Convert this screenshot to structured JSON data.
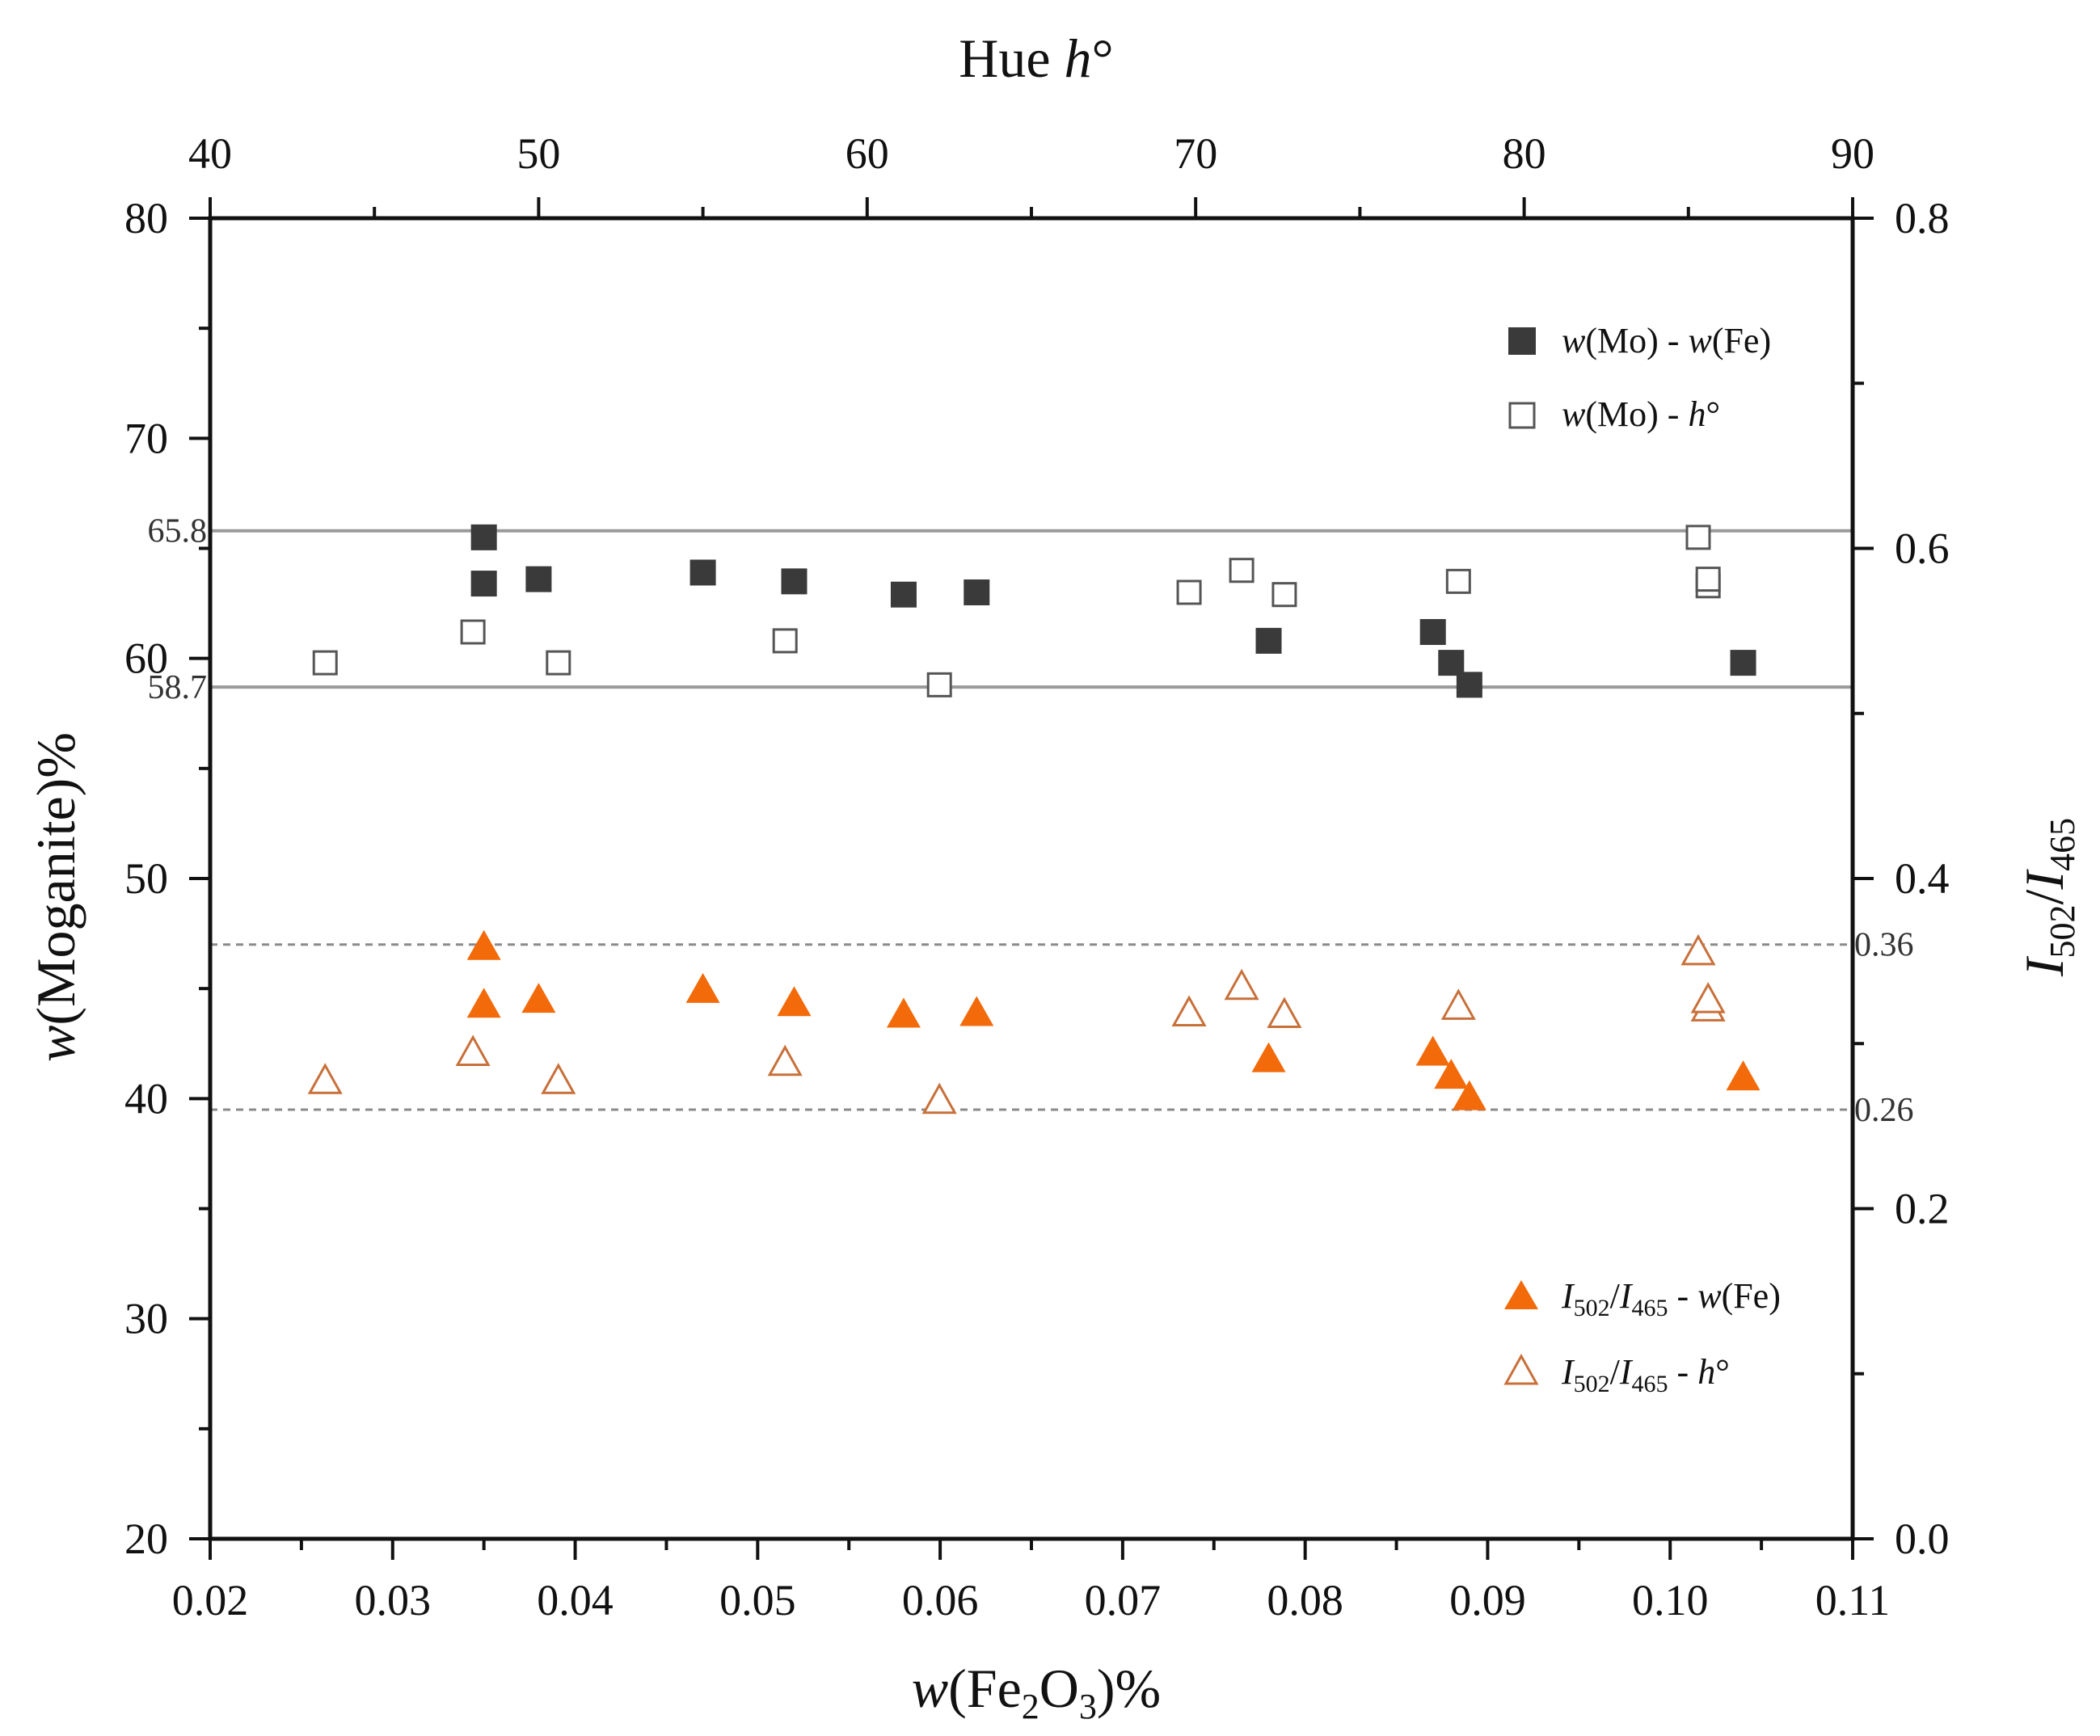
{
  "chart_data": {
    "type": "scatter",
    "axes": {
      "x_bottom": {
        "label_main": "w",
        "label_pre": "(Fe",
        "label_sub1": "2",
        "label_mid": "O",
        "label_sub2": "3",
        "label_post": ")%",
        "range": [
          0.02,
          0.11
        ],
        "ticks": [
          "0.02",
          "0.03",
          "0.04",
          "0.05",
          "0.06",
          "0.07",
          "0.08",
          "0.09",
          "0.10",
          "0.11"
        ]
      },
      "x_top": {
        "label_pre": "Hue ",
        "label_italic": "h",
        "label_post": "°",
        "range": [
          40,
          90
        ],
        "ticks": [
          "40",
          "50",
          "60",
          "70",
          "80",
          "90"
        ]
      },
      "y_left": {
        "label_italic": "w",
        "label_post": "(Moganite)%",
        "range": [
          20,
          80
        ],
        "ticks": [
          "20",
          "30",
          "40",
          "50",
          "60",
          "70",
          "80"
        ]
      },
      "y_right": {
        "label_i1": "I",
        "label_sub1": "502",
        "label_slash": "/",
        "label_i2": "I",
        "label_sub2": "465",
        "range": [
          0.0,
          0.8
        ],
        "ticks": [
          "0.0",
          "0.2",
          "0.4",
          "0.6",
          "0.8"
        ]
      }
    },
    "reference_lines": {
      "left_upper": {
        "value": 65.8,
        "label": "65.8"
      },
      "left_lower": {
        "value": 58.7,
        "label": "58.7"
      },
      "right_upper": {
        "value": 0.36,
        "label": "0.36"
      },
      "right_lower": {
        "value": 0.26,
        "label": "0.26"
      }
    },
    "series": [
      {
        "name": "w(Mo) - w(Fe)",
        "legend_parts": [
          "w",
          "(Mo) - ",
          "w",
          "(Fe)"
        ],
        "marker": "square-filled",
        "color": "#3a3a3a",
        "x_axis": "bottom",
        "y_axis": "left",
        "points": [
          [
            0.035,
            65.5
          ],
          [
            0.035,
            63.4
          ],
          [
            0.038,
            63.6
          ],
          [
            0.047,
            63.9
          ],
          [
            0.052,
            63.5
          ],
          [
            0.058,
            62.9
          ],
          [
            0.062,
            63.0
          ],
          [
            0.078,
            60.8
          ],
          [
            0.087,
            61.2
          ],
          [
            0.088,
            59.8
          ],
          [
            0.089,
            58.8
          ],
          [
            0.104,
            59.8
          ]
        ]
      },
      {
        "name": "w(Mo) - h°",
        "legend_parts": [
          "w",
          "(Mo) - ",
          "h",
          "°"
        ],
        "marker": "square-open",
        "color": "#555555",
        "x_axis": "top",
        "y_axis": "left",
        "points": [
          [
            43.5,
            59.8
          ],
          [
            48.0,
            61.2
          ],
          [
            50.6,
            59.8
          ],
          [
            57.5,
            60.8
          ],
          [
            62.2,
            58.8
          ],
          [
            69.8,
            63.0
          ],
          [
            71.4,
            64.0
          ],
          [
            72.7,
            62.9
          ],
          [
            78.0,
            63.5
          ],
          [
            85.3,
            65.5
          ],
          [
            85.6,
            63.3
          ],
          [
            85.6,
            63.6
          ]
        ]
      },
      {
        "name": "I502/I465 - w(Fe)",
        "legend_parts": [
          "I",
          "502",
          "/",
          "I",
          "465",
          " - ",
          "w",
          "(Fe)"
        ],
        "marker": "triangle-filled",
        "color": "#f26a0a",
        "x_axis": "bottom",
        "y_axis": "right",
        "points": [
          [
            0.035,
            0.358
          ],
          [
            0.035,
            0.323
          ],
          [
            0.038,
            0.326
          ],
          [
            0.047,
            0.332
          ],
          [
            0.052,
            0.324
          ],
          [
            0.058,
            0.317
          ],
          [
            0.062,
            0.318
          ],
          [
            0.078,
            0.29
          ],
          [
            0.087,
            0.294
          ],
          [
            0.088,
            0.28
          ],
          [
            0.089,
            0.267
          ],
          [
            0.104,
            0.279
          ]
        ]
      },
      {
        "name": "I502/I465 - h°",
        "legend_parts": [
          "I",
          "502",
          "/",
          "I",
          "465",
          " - ",
          "h",
          "°"
        ],
        "marker": "triangle-open",
        "color": "#c8703a",
        "x_axis": "top",
        "y_axis": "right",
        "points": [
          [
            43.5,
            0.277
          ],
          [
            48.0,
            0.294
          ],
          [
            50.6,
            0.277
          ],
          [
            57.5,
            0.288
          ],
          [
            62.2,
            0.265
          ],
          [
            69.8,
            0.318
          ],
          [
            71.4,
            0.334
          ],
          [
            72.7,
            0.317
          ],
          [
            78.0,
            0.322
          ],
          [
            85.3,
            0.355
          ],
          [
            85.6,
            0.321
          ],
          [
            85.6,
            0.326
          ]
        ]
      }
    ],
    "legend_upper_position": "top-right",
    "legend_lower_position": "bottom-right"
  }
}
